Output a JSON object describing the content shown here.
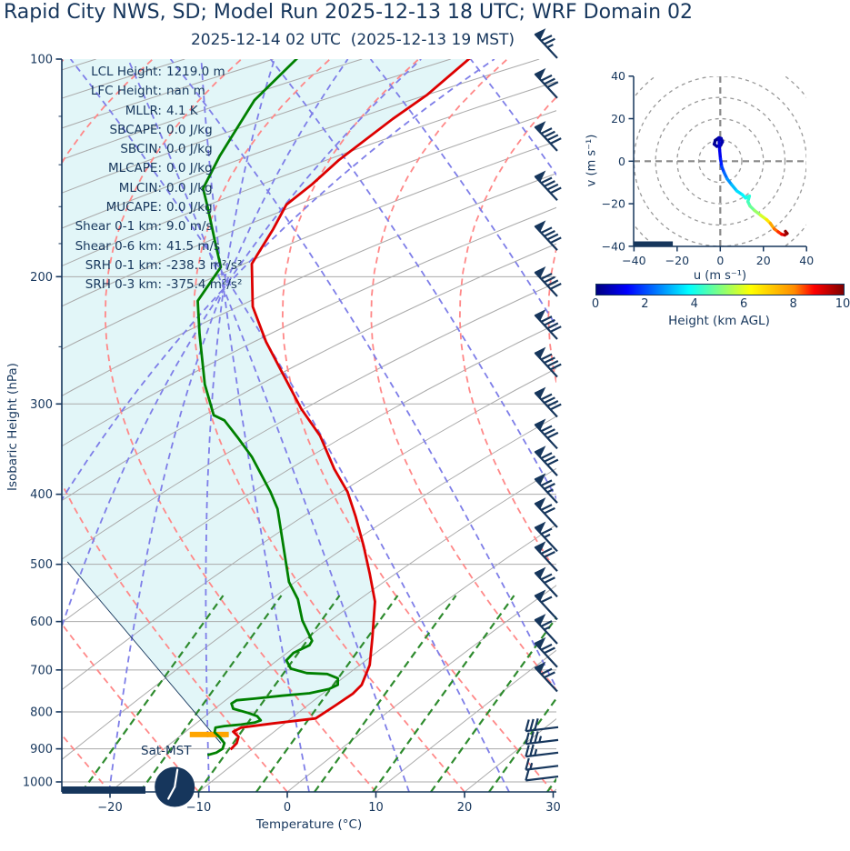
{
  "header": {
    "title": "Rapid City NWS, SD; Model Run 2025-12-13 18 UTC; WRF Domain 02",
    "subtitle": "2025-12-14 02 UTC  (2025-12-13 19 MST)"
  },
  "chart_data": [
    {
      "name": "skewt_sounding",
      "type": "line",
      "xlabel": "Temperature (°C)",
      "ylabel": "Isobaric Height (hPa)",
      "x_ticks": [
        -20,
        -10,
        0,
        10,
        20,
        30
      ],
      "x_range": [
        -25.4,
        30.4
      ],
      "p_ticks": [
        100,
        200,
        300,
        400,
        500,
        600,
        700,
        800,
        900,
        1000
      ],
      "p_minor_ticks": [
        120,
        140,
        160,
        180,
        250
      ],
      "p_gridlines": [
        200,
        300,
        400,
        500,
        600,
        700,
        800,
        900,
        1000
      ],
      "p_range": [
        100,
        1035
      ],
      "surface_label": "Sat-MST",
      "stats": [
        {
          "label": "LCL Height",
          "value": "1219.0 m"
        },
        {
          "label": "LFC Height",
          "value": "nan m"
        },
        {
          "label": "MLLR",
          "value": "4.1 K"
        },
        {
          "label": "SBCAPE",
          "value": "0.0 J/kg"
        },
        {
          "label": "SBCIN",
          "value": "0.0 J/kg"
        },
        {
          "label": "MLCAPE",
          "value": "0.0 J/kg"
        },
        {
          "label": "MLCIN",
          "value": "0.0 J/kg"
        },
        {
          "label": "MUCAPE",
          "value": "0.0 J/kg"
        },
        {
          "label": "Shear 0-1 km",
          "value": "9.0 m/s"
        },
        {
          "label": "Shear 0-6 km",
          "value": "41.5 m/s"
        },
        {
          "label": "SRH 0-1 km",
          "value": "-238.3 m²/s²"
        },
        {
          "label": "SRH 0-3 km",
          "value": "-375.4 m²/s²"
        }
      ],
      "series": [
        {
          "name": "temperature",
          "color": "#dd0000",
          "points": [
            [
              99,
              20.9
            ],
            [
              112,
              15.8
            ],
            [
              121,
              11.9
            ],
            [
              138,
              5.8
            ],
            [
              149,
              2.8
            ],
            [
              159,
              -0.1
            ],
            [
              172,
              -1.6
            ],
            [
              185,
              -3.2
            ],
            [
              192,
              -4.0
            ],
            [
              220,
              -3.9
            ],
            [
              246,
              -2.4
            ],
            [
              271,
              -0.6
            ],
            [
              305,
              1.6
            ],
            [
              332,
              3.7
            ],
            [
              369,
              5.3
            ],
            [
              397,
              6.8
            ],
            [
              429,
              7.7
            ],
            [
              471,
              8.6
            ],
            [
              515,
              9.3
            ],
            [
              563,
              9.9
            ],
            [
              632,
              9.6
            ],
            [
              689,
              9.3
            ],
            [
              734,
              8.4
            ],
            [
              755,
              7.4
            ],
            [
              783,
              5.5
            ],
            [
              817,
              3.2
            ],
            [
              830,
              -1.6
            ],
            [
              841,
              -5.2
            ],
            [
              852,
              -6.1
            ],
            [
              866,
              -5.5
            ],
            [
              884,
              -5.7
            ],
            [
              902,
              -6.4
            ]
          ]
        },
        {
          "name": "dewpoint",
          "color": "#008000",
          "points": [
            [
              99,
              1.4
            ],
            [
              114,
              -3.7
            ],
            [
              136,
              -7.6
            ],
            [
              151,
              -9.5
            ],
            [
              160,
              -9.0
            ],
            [
              180,
              -8.1
            ],
            [
              194,
              -7.5
            ],
            [
              216,
              -10.1
            ],
            [
              240,
              -9.9
            ],
            [
              282,
              -9.3
            ],
            [
              311,
              -8.3
            ],
            [
              316,
              -7.1
            ],
            [
              335,
              -5.5
            ],
            [
              355,
              -4.0
            ],
            [
              397,
              -1.9
            ],
            [
              419,
              -1.1
            ],
            [
              529,
              0.2
            ],
            [
              559,
              1.2
            ],
            [
              598,
              1.7
            ],
            [
              638,
              2.8
            ],
            [
              647,
              2.5
            ],
            [
              663,
              0.7
            ],
            [
              679,
              -0.1
            ],
            [
              697,
              0.4
            ],
            [
              707,
              2.2
            ],
            [
              709,
              4.5
            ],
            [
              719,
              5.7
            ],
            [
              734,
              5.7
            ],
            [
              744,
              4.7
            ],
            [
              754,
              2.5
            ],
            [
              760,
              -0.6
            ],
            [
              767,
              -3.7
            ],
            [
              771,
              -5.7
            ],
            [
              779,
              -6.3
            ],
            [
              792,
              -6.1
            ],
            [
              803,
              -4.4
            ],
            [
              811,
              -3.4
            ],
            [
              822,
              -3.0
            ],
            [
              828,
              -3.7
            ],
            [
              833,
              -5.2
            ],
            [
              837,
              -7.1
            ],
            [
              841,
              -8.1
            ],
            [
              854,
              -8.2
            ],
            [
              868,
              -7.6
            ],
            [
              884,
              -7.1
            ],
            [
              900,
              -7.3
            ],
            [
              911,
              -8.0
            ],
            [
              918,
              -9.0
            ]
          ]
        },
        {
          "name": "parcel_trace",
          "color": "#16365c",
          "points": [
            [
              496,
              -24.8
            ],
            [
              884,
              -7.5
            ]
          ]
        }
      ],
      "lcl_bar": {
        "pressure": 860,
        "x_from": -11.0,
        "x_to": -6.6,
        "color": "#ffa500"
      },
      "ground_bar": {
        "pressure": 1025,
        "x_from": -25.4,
        "x_to": -16.0
      },
      "clock_marker": {
        "pressure": 1025,
        "x": -12.7
      },
      "wind_barbs": [
        {
          "p": 96,
          "pennants": 1,
          "full": 2,
          "half": 1,
          "dir": "nw"
        },
        {
          "p": 109,
          "pennants": 1,
          "full": 3,
          "half": 0,
          "dir": "nw"
        },
        {
          "p": 129,
          "pennants": 1,
          "full": 4,
          "half": 0,
          "dir": "nw"
        },
        {
          "p": 151,
          "pennants": 1,
          "full": 4,
          "half": 0,
          "dir": "nw"
        },
        {
          "p": 177,
          "pennants": 1,
          "full": 4,
          "half": 0,
          "dir": "nw"
        },
        {
          "p": 205,
          "pennants": 1,
          "full": 4,
          "half": 0,
          "dir": "nw"
        },
        {
          "p": 235,
          "pennants": 1,
          "full": 4,
          "half": 0,
          "dir": "nw"
        },
        {
          "p": 265,
          "pennants": 1,
          "full": 4,
          "half": 0,
          "dir": "nw"
        },
        {
          "p": 301,
          "pennants": 1,
          "full": 4,
          "half": 0,
          "dir": "nw"
        },
        {
          "p": 333,
          "pennants": 1,
          "full": 3,
          "half": 0,
          "dir": "nw"
        },
        {
          "p": 363,
          "pennants": 1,
          "full": 3,
          "half": 0,
          "dir": "nw"
        },
        {
          "p": 396,
          "pennants": 1,
          "full": 2,
          "half": 1,
          "dir": "nw"
        },
        {
          "p": 428,
          "pennants": 1,
          "full": 2,
          "half": 0,
          "dir": "nw"
        },
        {
          "p": 462,
          "pennants": 1,
          "full": 1,
          "half": 1,
          "dir": "nw"
        },
        {
          "p": 492,
          "pennants": 1,
          "full": 2,
          "half": 0,
          "dir": "nw"
        },
        {
          "p": 534,
          "pennants": 1,
          "full": 2,
          "half": 0,
          "dir": "nw"
        },
        {
          "p": 574,
          "pennants": 1,
          "full": 1,
          "half": 0,
          "dir": "nw"
        },
        {
          "p": 620,
          "pennants": 1,
          "full": 1,
          "half": 1,
          "dir": "nw"
        },
        {
          "p": 668,
          "pennants": 1,
          "full": 2,
          "half": 0,
          "dir": "nw"
        },
        {
          "p": 722,
          "pennants": 1,
          "full": 2,
          "half": 0,
          "dir": "nw"
        },
        {
          "p": 840,
          "pennants": 0,
          "full": 3,
          "half": 0,
          "dir": "w"
        },
        {
          "p": 875,
          "pennants": 0,
          "full": 3,
          "half": 1,
          "dir": "w"
        },
        {
          "p": 911,
          "pennants": 0,
          "full": 2,
          "half": 1,
          "dir": "w"
        },
        {
          "p": 950,
          "pennants": 0,
          "full": 1,
          "half": 1,
          "dir": "w"
        },
        {
          "p": 983,
          "pennants": 0,
          "full": 1,
          "half": 0,
          "dir": "w"
        }
      ],
      "style": {
        "fill": "#e2f6f8",
        "isotherm": "#aaaaaa",
        "dry_adiabat": "#ff8888",
        "moist_adiabat": "#7e7ee8",
        "mixing_ratio": "#2e8b2e",
        "accent": "#16365c"
      }
    },
    {
      "name": "hodograph",
      "type": "line",
      "xlabel": "u (m s⁻¹)",
      "ylabel": "v (m s⁻¹)",
      "u_ticks": [
        -40,
        -20,
        0,
        20,
        40
      ],
      "v_ticks": [
        -40,
        -20,
        0,
        20,
        40
      ],
      "u_range": [
        -40,
        40
      ],
      "v_range": [
        -40,
        40
      ],
      "ring_radii": [
        10,
        20,
        30,
        40,
        50
      ],
      "ground_bar": {
        "v": -39,
        "u_from": -40,
        "u_to": -22
      },
      "trace_points": [
        [
          -0.7,
          11.0,
          0.0
        ],
        [
          -2.3,
          9.8,
          0.1
        ],
        [
          -2.8,
          8.0,
          0.2
        ],
        [
          -1.6,
          7.0,
          0.3
        ],
        [
          0.2,
          7.5,
          0.35
        ],
        [
          1.0,
          9.1,
          0.4
        ],
        [
          0.4,
          10.7,
          0.45
        ],
        [
          -0.6,
          11.0,
          0.5
        ],
        [
          -0.5,
          8.5,
          0.7
        ],
        [
          -0.3,
          5.3,
          0.9
        ],
        [
          0.1,
          1.0,
          1.3
        ],
        [
          0.7,
          -2.6,
          1.7
        ],
        [
          1.8,
          -5.4,
          2.1
        ],
        [
          3.2,
          -8.3,
          2.5
        ],
        [
          5.3,
          -11.1,
          2.9
        ],
        [
          7.7,
          -14.0,
          3.3
        ],
        [
          10.3,
          -15.8,
          3.6
        ],
        [
          11.7,
          -17.3,
          3.8
        ],
        [
          13.5,
          -16.4,
          4.0
        ],
        [
          12.8,
          -19.0,
          4.3
        ],
        [
          13.8,
          -21.1,
          4.6
        ],
        [
          15.9,
          -23.2,
          5.0
        ],
        [
          18.7,
          -25.4,
          5.5
        ],
        [
          21.5,
          -27.5,
          6.2
        ],
        [
          23.2,
          -29.2,
          6.8
        ],
        [
          25.0,
          -31.8,
          7.4
        ],
        [
          26.8,
          -33.2,
          8.0
        ],
        [
          28.5,
          -34.4,
          8.6
        ],
        [
          29.9,
          -34.7,
          9.2
        ],
        [
          31.0,
          -34.0,
          9.7
        ],
        [
          30.2,
          -33.0,
          10.0
        ]
      ]
    },
    {
      "name": "height_colorbar",
      "type": "colorbar",
      "label": "Height (km AGL)",
      "colormap": "jet",
      "range": [
        0,
        10
      ],
      "ticks": [
        0,
        2,
        4,
        6,
        8,
        10
      ]
    }
  ]
}
